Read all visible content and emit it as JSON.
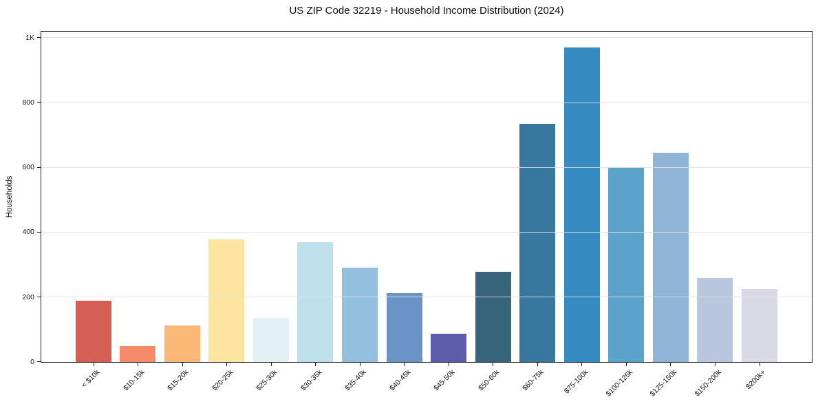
{
  "chart_data": {
    "type": "bar",
    "title": "US ZIP Code 32219 - Household Income Distribution (2024)",
    "xlabel": "",
    "ylabel": "Households",
    "categories": [
      "< $10k",
      "$10-15k",
      "$15-20k",
      "$20-25k",
      "$25-30k",
      "$30-35k",
      "$35-40k",
      "$40-45k",
      "$45-50k",
      "$50-60k",
      "$60-75k",
      "$75-100k",
      "$100-125k",
      "$125-150k",
      "$150-200k",
      "$200k+"
    ],
    "values": [
      190,
      48,
      112,
      378,
      135,
      370,
      290,
      212,
      88,
      278,
      735,
      970,
      600,
      645,
      260,
      225
    ],
    "bar_colors": [
      "#d65f55",
      "#f5896a",
      "#fbb877",
      "#fde4a0",
      "#e3f0f6",
      "#c0dfec",
      "#93c0de",
      "#6b94c4",
      "#5d5cab",
      "#37647a",
      "#38789f",
      "#368bc1",
      "#5ba3c9",
      "#90b4d6",
      "#b9c7de",
      "#d8d9e4"
    ],
    "ylim": [
      0,
      1018
    ],
    "yticks": {
      "values": [
        0,
        200,
        400,
        600,
        800,
        1000
      ],
      "labels": [
        "0",
        "200",
        "400",
        "600",
        "800",
        "1K"
      ]
    },
    "grid": "horizontal",
    "legend_position": "none",
    "x_tick_rotation_deg": 45
  }
}
